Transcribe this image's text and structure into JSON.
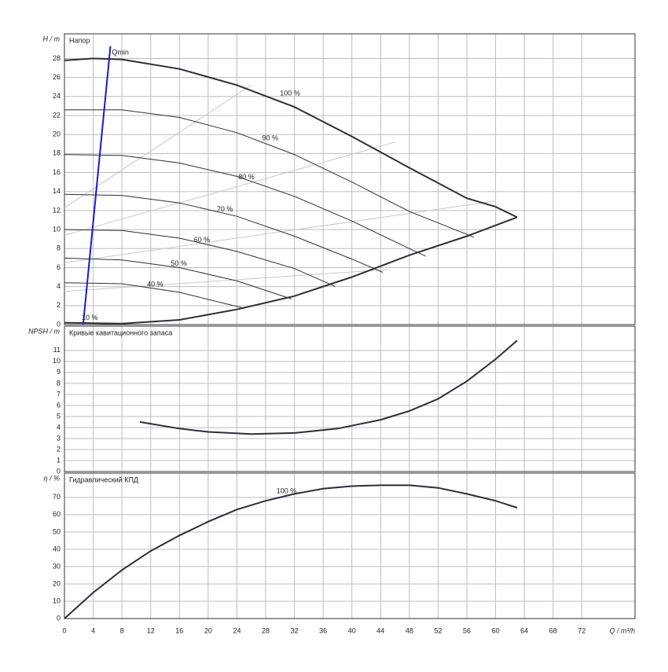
{
  "chart_data": [
    {
      "type": "line",
      "title": "Напор",
      "ylabel": "H / m",
      "xlim": [
        0,
        79.4
      ],
      "xticks": [
        0,
        4,
        8,
        12,
        16,
        20,
        24,
        28,
        32,
        36,
        40,
        44,
        48,
        52,
        56,
        60,
        64,
        68,
        72
      ],
      "ylim": [
        0,
        30.6
      ],
      "yticks": [
        0,
        2,
        4,
        6,
        8,
        10,
        12,
        14,
        16,
        18,
        20,
        22,
        24,
        26,
        28
      ],
      "grid": true,
      "show_xtick_labels": false,
      "series": [
        {
          "color": "#c8c8c8",
          "width": 1,
          "x": [
            0,
            26
          ],
          "values": [
            12.3,
            25.2
          ]
        },
        {
          "color": "#c8c8c8",
          "width": 1,
          "x": [
            0,
            46
          ],
          "values": [
            9.4,
            19.2
          ]
        },
        {
          "color": "#c8c8c8",
          "width": 1,
          "x": [
            0,
            60
          ],
          "values": [
            6.5,
            13
          ]
        },
        {
          "color": "#c8c8c8",
          "width": 1,
          "x": [
            0,
            45
          ],
          "values": [
            3.5,
            5.8
          ]
        },
        {
          "color": "#2b2f3a",
          "width": 2,
          "x": [
            0,
            4,
            8,
            16,
            24,
            32,
            40,
            48,
            56,
            60,
            63
          ],
          "values": [
            27.8,
            28,
            27.9,
            26.9,
            25.2,
            22.9,
            19.8,
            16.5,
            13.3,
            12.4,
            11.3
          ]
        },
        {
          "color": "#2b2f3a",
          "width": 1,
          "x": [
            0,
            8,
            16,
            24,
            32,
            40,
            48,
            57
          ],
          "values": [
            22.6,
            22.6,
            21.8,
            20.2,
            17.9,
            15,
            11.9,
            9.2
          ]
        },
        {
          "color": "#2b2f3a",
          "width": 1,
          "x": [
            0,
            8,
            16,
            24,
            32,
            40,
            48,
            50.3
          ],
          "values": [
            17.9,
            17.8,
            17,
            15.6,
            13.5,
            10.9,
            8,
            7.2
          ]
        },
        {
          "color": "#2b2f3a",
          "width": 1,
          "x": [
            0,
            8,
            16,
            24,
            32,
            40,
            44.3
          ],
          "values": [
            13.7,
            13.6,
            12.8,
            11.4,
            9.3,
            6.9,
            5.5
          ]
        },
        {
          "color": "#2b2f3a",
          "width": 1,
          "x": [
            0,
            8,
            16,
            24,
            32,
            37.7
          ],
          "values": [
            10,
            9.9,
            9.1,
            7.7,
            5.9,
            4
          ]
        },
        {
          "color": "#2b2f3a",
          "width": 1,
          "x": [
            0,
            8,
            16,
            24,
            31.6
          ],
          "values": [
            7,
            6.8,
            6,
            4.6,
            2.7
          ]
        },
        {
          "color": "#2b2f3a",
          "width": 1,
          "x": [
            0,
            8,
            16,
            25.1
          ],
          "values": [
            4.4,
            4.3,
            3.4,
            1.7
          ]
        },
        {
          "color": "#2b2f3a",
          "width": 2,
          "x": [
            0,
            8,
            16,
            24,
            32,
            40,
            48,
            56,
            63
          ],
          "values": [
            0.2,
            0.1,
            0.5,
            1.6,
            3,
            5,
            7.3,
            9.3,
            11.3
          ]
        },
        {
          "color": "#1a1ad0",
          "width": 2,
          "x": [
            2.6,
            6.4
          ],
          "values": [
            0,
            29.3
          ]
        }
      ],
      "annotations": [
        {
          "text": "Qmin",
          "x": 6.6,
          "y": 28.6
        },
        {
          "text": "100 %",
          "x": 30,
          "y": 24.3
        },
        {
          "text": "90 %",
          "x": 27.5,
          "y": 19.6
        },
        {
          "text": "80 %",
          "x": 24.2,
          "y": 15.5
        },
        {
          "text": "70 %",
          "x": 21.2,
          "y": 12.1
        },
        {
          "text": "60 %",
          "x": 18,
          "y": 8.9
        },
        {
          "text": "50 %",
          "x": 14.8,
          "y": 6.4
        },
        {
          "text": "40 %",
          "x": 11.5,
          "y": 4.2
        },
        {
          "text": "10 %",
          "x": 2.4,
          "y": 0.7
        }
      ]
    },
    {
      "type": "line",
      "title": "Кривые кавитационного запаса",
      "ylabel": "NPSH / m",
      "xlim": [
        0,
        79.4
      ],
      "xticks": [
        0,
        4,
        8,
        12,
        16,
        20,
        24,
        28,
        32,
        36,
        40,
        44,
        48,
        52,
        56,
        60,
        64,
        68,
        72
      ],
      "ylim": [
        0,
        13.2
      ],
      "yticks": [
        0,
        1,
        2,
        3,
        4,
        5,
        6,
        7,
        8,
        9,
        10,
        11
      ],
      "grid": true,
      "show_xtick_labels": false,
      "series": [
        {
          "color": "#2b2f3a",
          "width": 2,
          "x": [
            10.5,
            16,
            20,
            26,
            32,
            38,
            44,
            48,
            52,
            56,
            60,
            63
          ],
          "values": [
            4.5,
            3.9,
            3.6,
            3.4,
            3.5,
            3.9,
            4.7,
            5.5,
            6.6,
            8.2,
            10.2,
            11.9
          ]
        }
      ],
      "annotations": []
    },
    {
      "type": "line",
      "title": "Гидравлический КПД",
      "ylabel": "η / %",
      "xlabel": "Q / m³/h",
      "xlim": [
        0,
        79.4
      ],
      "xticks": [
        0,
        4,
        8,
        12,
        16,
        20,
        24,
        28,
        32,
        36,
        40,
        44,
        48,
        52,
        56,
        60,
        64,
        68,
        72
      ],
      "ylim": [
        0,
        84
      ],
      "yticks": [
        0,
        10,
        20,
        30,
        40,
        50,
        60,
        70
      ],
      "grid": true,
      "show_xtick_labels": true,
      "series": [
        {
          "color": "#2b2f3a",
          "width": 2,
          "x": [
            0,
            4,
            8,
            12,
            16,
            20,
            24,
            28,
            32,
            36,
            40,
            44,
            48,
            52,
            56,
            60,
            63
          ],
          "values": [
            0,
            15,
            28,
            39,
            48,
            56,
            63,
            68,
            72,
            75,
            76.5,
            77,
            77,
            75.5,
            72,
            68,
            64
          ]
        }
      ],
      "annotations": [
        {
          "text": "100 %",
          "x": 29.5,
          "y": 73.5
        }
      ]
    }
  ]
}
